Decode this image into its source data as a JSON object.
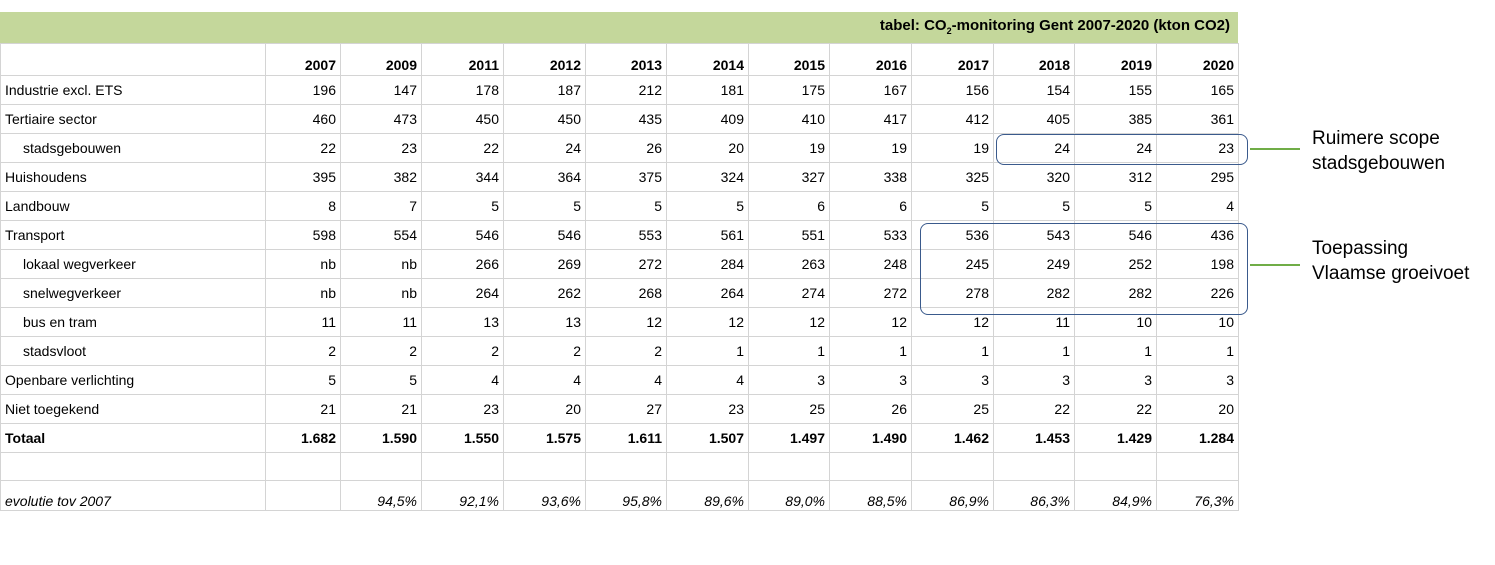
{
  "title": {
    "prefix": "tabel: CO",
    "sub": "2",
    "suffix": "-monitoring Gent 2007-2020 (kton CO2)"
  },
  "chart_data": {
    "type": "table",
    "years": [
      "2007",
      "2009",
      "2011",
      "2012",
      "2013",
      "2014",
      "2015",
      "2016",
      "2017",
      "2018",
      "2019",
      "2020"
    ],
    "rows": [
      {
        "label": "Industrie excl. ETS",
        "indent": false,
        "bold": false,
        "values": [
          "196",
          "147",
          "178",
          "187",
          "212",
          "181",
          "175",
          "167",
          "156",
          "154",
          "155",
          "165"
        ]
      },
      {
        "label": "Tertiaire sector",
        "indent": false,
        "bold": false,
        "values": [
          "460",
          "473",
          "450",
          "450",
          "435",
          "409",
          "410",
          "417",
          "412",
          "405",
          "385",
          "361"
        ]
      },
      {
        "label": "stadsgebouwen",
        "indent": true,
        "bold": false,
        "values": [
          "22",
          "23",
          "22",
          "24",
          "26",
          "20",
          "19",
          "19",
          "19",
          "24",
          "24",
          "23"
        ]
      },
      {
        "label": "Huishoudens",
        "indent": false,
        "bold": false,
        "values": [
          "395",
          "382",
          "344",
          "364",
          "375",
          "324",
          "327",
          "338",
          "325",
          "320",
          "312",
          "295"
        ]
      },
      {
        "label": "Landbouw",
        "indent": false,
        "bold": false,
        "values": [
          "8",
          "7",
          "5",
          "5",
          "5",
          "5",
          "6",
          "6",
          "5",
          "5",
          "5",
          "4"
        ]
      },
      {
        "label": "Transport",
        "indent": false,
        "bold": false,
        "values": [
          "598",
          "554",
          "546",
          "546",
          "553",
          "561",
          "551",
          "533",
          "536",
          "543",
          "546",
          "436"
        ]
      },
      {
        "label": "lokaal wegverkeer",
        "indent": true,
        "bold": false,
        "values": [
          "nb",
          "nb",
          "266",
          "269",
          "272",
          "284",
          "263",
          "248",
          "245",
          "249",
          "252",
          "198"
        ]
      },
      {
        "label": "snelwegverkeer",
        "indent": true,
        "bold": false,
        "values": [
          "nb",
          "nb",
          "264",
          "262",
          "268",
          "264",
          "274",
          "272",
          "278",
          "282",
          "282",
          "226"
        ]
      },
      {
        "label": "bus en tram",
        "indent": true,
        "bold": false,
        "values": [
          "11",
          "11",
          "13",
          "13",
          "12",
          "12",
          "12",
          "12",
          "12",
          "11",
          "10",
          "10"
        ]
      },
      {
        "label": "stadsvloot",
        "indent": true,
        "bold": false,
        "values": [
          "2",
          "2",
          "2",
          "2",
          "2",
          "1",
          "1",
          "1",
          "1",
          "1",
          "1",
          "1"
        ]
      },
      {
        "label": "Openbare verlichting",
        "indent": false,
        "bold": false,
        "values": [
          "5",
          "5",
          "4",
          "4",
          "4",
          "4",
          "3",
          "3",
          "3",
          "3",
          "3",
          "3"
        ]
      },
      {
        "label": "Niet toegekend",
        "indent": false,
        "bold": false,
        "values": [
          "21",
          "21",
          "23",
          "20",
          "27",
          "23",
          "25",
          "26",
          "25",
          "22",
          "22",
          "20"
        ]
      },
      {
        "label": "Totaal",
        "indent": false,
        "bold": true,
        "values": [
          "1.682",
          "1.590",
          "1.550",
          "1.575",
          "1.611",
          "1.507",
          "1.497",
          "1.490",
          "1.462",
          "1.453",
          "1.429",
          "1.284"
        ]
      }
    ],
    "evolution": {
      "label": "evolutie tov 2007",
      "values": [
        "",
        "94,5%",
        "92,1%",
        "93,6%",
        "95,8%",
        "89,6%",
        "89,0%",
        "88,5%",
        "86,9%",
        "86,3%",
        "84,9%",
        "76,3%"
      ]
    }
  },
  "annotations": [
    {
      "line1": "Ruimere scope",
      "line2": "stadsgebouwen"
    },
    {
      "line1": "Toepassing",
      "line2": "Vlaamse groeivoet"
    }
  ],
  "colors": {
    "header_band": "#c4d79b",
    "box_border": "#3a5a8c",
    "connector": "#70ad47"
  }
}
